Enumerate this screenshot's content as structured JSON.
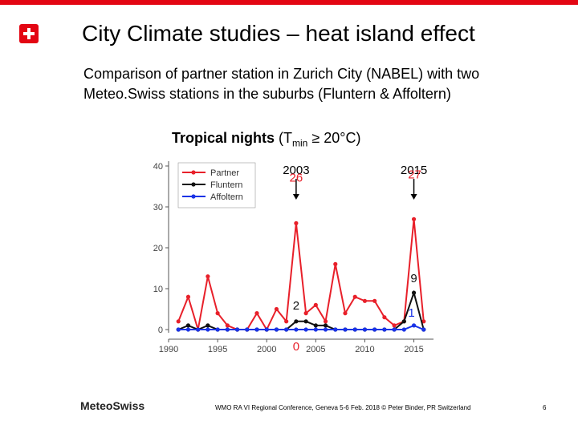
{
  "slide": {
    "title": "City Climate studies – heat island effect",
    "subtitle": "Comparison of partner station in Zurich City (NABEL) with two Meteo.Swiss stations in the suburbs (Fluntern & Affoltern)",
    "chart_heading_bold": "Tropical nights",
    "chart_heading_rest_pre": " (T",
    "chart_heading_sub": "min",
    "chart_heading_rest_post": " ≥ 20°C)"
  },
  "footer": {
    "logo_text": "MeteoSwiss",
    "conference": "WMO RA VI Regional Conference, Geneva 5-6 Feb. 2018 © Peter Binder, PR Switzerland",
    "page": "6"
  },
  "colors": {
    "brand_red": "#e30613",
    "partner": "#e8202a",
    "fluntern": "#111111",
    "affoltern": "#1a33e6"
  },
  "chart_data": {
    "type": "line",
    "title": "Tropical nights (Tmin ≥ 20°C)",
    "xlabel": "",
    "ylabel": "",
    "xlim": [
      1990,
      2017
    ],
    "ylim": [
      0,
      40
    ],
    "xticks": [
      1990,
      1995,
      2000,
      2005,
      2010,
      2015
    ],
    "yticks": [
      0,
      10,
      20,
      30,
      40
    ],
    "x": [
      1991,
      1992,
      1993,
      1994,
      1995,
      1996,
      1997,
      1998,
      1999,
      2000,
      2001,
      2002,
      2003,
      2004,
      2005,
      2006,
      2007,
      2008,
      2009,
      2010,
      2011,
      2012,
      2013,
      2014,
      2015,
      2016
    ],
    "series": [
      {
        "name": "Partner",
        "color": "#e8202a",
        "values": [
          2,
          8,
          0,
          13,
          4,
          1,
          0,
          0,
          4,
          0,
          5,
          2,
          26,
          4,
          6,
          2,
          16,
          4,
          8,
          7,
          7,
          3,
          1,
          2,
          27,
          2
        ]
      },
      {
        "name": "Fluntern",
        "color": "#111111",
        "values": [
          0,
          1,
          0,
          1,
          0,
          0,
          0,
          0,
          0,
          0,
          0,
          0,
          2,
          2,
          1,
          1,
          0,
          0,
          0,
          0,
          0,
          0,
          0,
          2,
          9,
          0
        ]
      },
      {
        "name": "Affoltern",
        "color": "#1a33e6",
        "values": [
          0,
          0,
          0,
          0,
          0,
          0,
          0,
          0,
          0,
          0,
          0,
          0,
          0,
          0,
          0,
          0,
          0,
          0,
          0,
          0,
          0,
          0,
          0,
          0,
          1,
          0
        ]
      }
    ],
    "legend": {
      "position": "top-left",
      "entries": [
        "Partner",
        "Fluntern",
        "Affoltern"
      ]
    },
    "annotations": [
      {
        "text": "2003",
        "kind": "year-arrow",
        "x": 2003,
        "arrow_to": 28
      },
      {
        "text": "2015",
        "kind": "year-arrow",
        "x": 2015,
        "arrow_to": 32
      },
      {
        "text": "26",
        "color": "#e8202a",
        "x": 2003,
        "y": 26
      },
      {
        "text": "27",
        "color": "#e8202a",
        "x": 2015,
        "y": 27
      },
      {
        "text": "9",
        "color": "#111111",
        "x": 2015,
        "y": 9
      },
      {
        "text": "2",
        "color": "#111111",
        "x": 2003,
        "y": 2
      },
      {
        "text": "1",
        "color": "#1a33e6",
        "x": 2015,
        "y": 1
      },
      {
        "text": "0",
        "color": "#e8202a",
        "x": 2003,
        "y": 0
      }
    ]
  }
}
